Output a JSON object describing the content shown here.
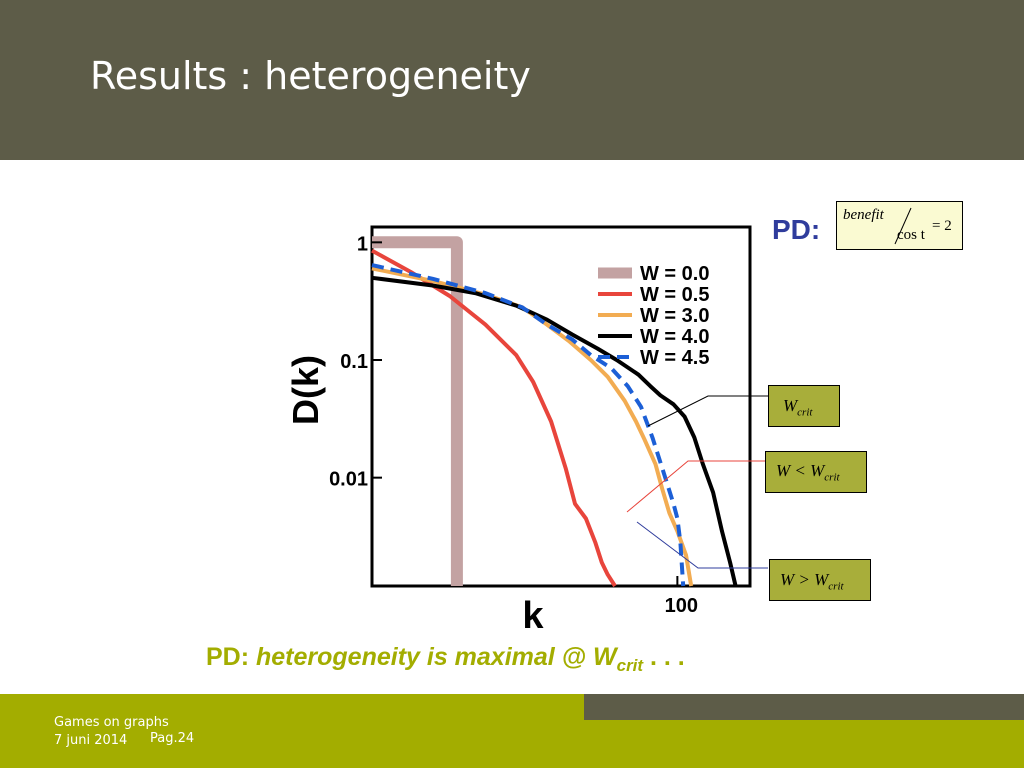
{
  "slide": {
    "title": "Results : heterogeneity",
    "pd_label": "PD:",
    "formula": {
      "numerator": "benefit",
      "denominator": "cos t",
      "equals": "= 2"
    },
    "annotations": {
      "crit": {
        "main": "W",
        "sub": "crit"
      },
      "less": {
        "main": "W < W",
        "sub": "crit"
      },
      "greater": {
        "main": "W > W",
        "sub": "crit"
      }
    },
    "caption": {
      "prefix": "PD:",
      "italic": " heterogeneity is maximal @ W",
      "sub": "crit",
      "suffix": " . . ."
    },
    "footer": {
      "line1": "Games on graphs",
      "date": "7 juni 2014",
      "page": "Pag.24"
    },
    "colors": {
      "header": "#5d5c48",
      "footer": "#a3ad00",
      "pd_blue": "#2f3c9c",
      "caption_green": "#a3ad00"
    }
  },
  "chart_data": {
    "type": "line",
    "xlabel": "k",
    "ylabel": "D(k)",
    "x_scale": "log",
    "y_scale": "log",
    "x_tick_labels": [
      "100"
    ],
    "y_tick_labels": [
      "1",
      "0.1",
      "0.01"
    ],
    "y_ticks": [
      1,
      0.1,
      0.01
    ],
    "xlim": [
      1.8,
      260
    ],
    "ylim": [
      0.0012,
      1.35
    ],
    "grid": false,
    "legend_position": "top-right",
    "series": [
      {
        "name": "W = 0.0",
        "color": "#c3a2a2",
        "style": "solid",
        "width": 12,
        "x": [
          1.8,
          5.5,
          5.5
        ],
        "y": [
          1,
          1,
          0.0012
        ]
      },
      {
        "name": "W = 0.5",
        "color": "#e8453c",
        "style": "solid",
        "width": 4,
        "x": [
          1.8,
          3,
          5,
          8,
          12,
          15,
          19,
          23,
          26,
          30,
          34,
          37,
          40,
          44
        ],
        "y": [
          0.85,
          0.56,
          0.35,
          0.2,
          0.11,
          0.065,
          0.03,
          0.012,
          0.006,
          0.0045,
          0.0028,
          0.0019,
          0.0015,
          0.0012
        ]
      },
      {
        "name": "W = 3.0",
        "color": "#f2ac52",
        "style": "solid",
        "width": 4,
        "x": [
          1.8,
          4,
          8,
          13,
          18,
          24,
          32,
          40,
          50,
          58,
          65,
          75,
          82,
          90,
          100,
          112,
          120
        ],
        "y": [
          0.6,
          0.47,
          0.36,
          0.28,
          0.2,
          0.145,
          0.1,
          0.072,
          0.045,
          0.03,
          0.021,
          0.013,
          0.008,
          0.005,
          0.0035,
          0.0022,
          0.0012
        ]
      },
      {
        "name": "W = 4.0",
        "color": "#000000",
        "style": "solid",
        "width": 4,
        "x": [
          1.8,
          4,
          7,
          12,
          18,
          25,
          35,
          45,
          60,
          70,
          80,
          95,
          110,
          125,
          140,
          160,
          180,
          200,
          215
        ],
        "y": [
          0.5,
          0.43,
          0.37,
          0.29,
          0.22,
          0.165,
          0.125,
          0.1,
          0.075,
          0.06,
          0.05,
          0.042,
          0.033,
          0.022,
          0.013,
          0.0075,
          0.0035,
          0.0019,
          0.0012
        ]
      },
      {
        "name": "W = 4.5",
        "color": "#1c5fd6",
        "style": "dashed",
        "width": 4,
        "x": [
          1.8,
          4,
          8,
          13,
          18,
          25,
          32,
          42,
          52,
          62,
          72,
          82,
          95,
          100,
          104,
          108
        ],
        "y": [
          0.64,
          0.49,
          0.37,
          0.28,
          0.2,
          0.15,
          0.11,
          0.085,
          0.06,
          0.04,
          0.022,
          0.012,
          0.006,
          0.0045,
          0.0028,
          0.0012
        ]
      }
    ]
  }
}
